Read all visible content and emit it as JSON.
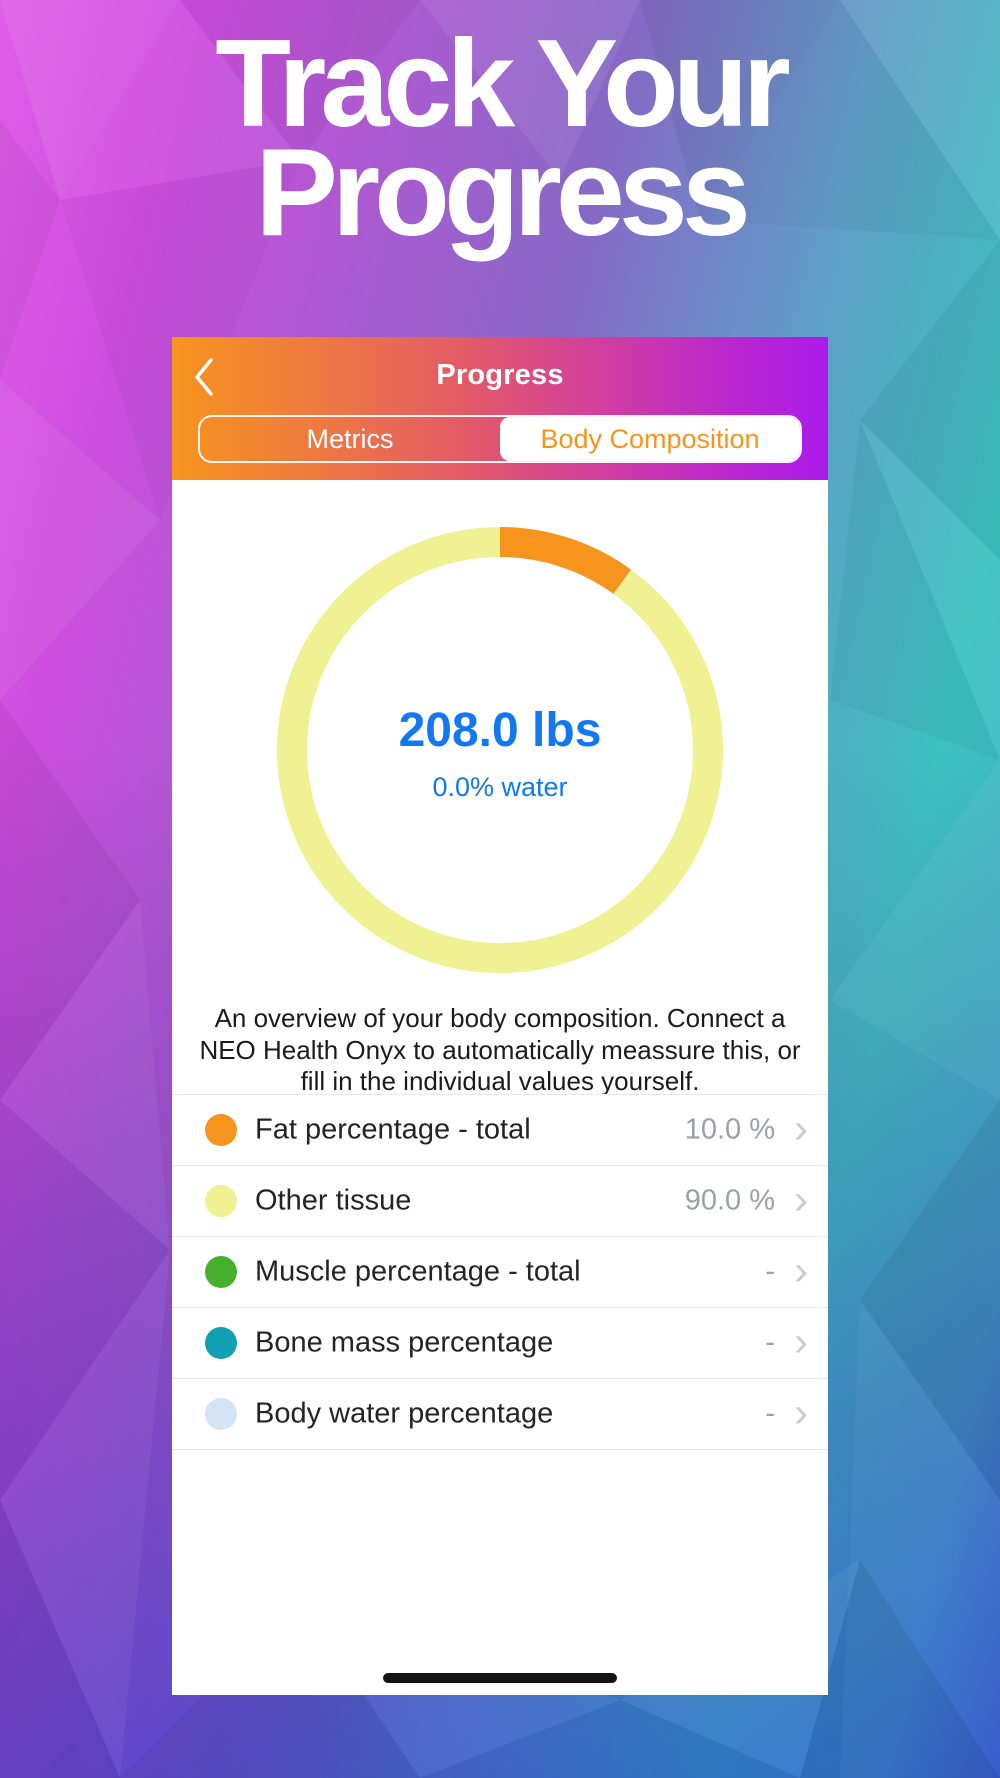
{
  "page": {
    "title_line1": "Track Your",
    "title_line2": "Progress"
  },
  "icons": {
    "back": "chevron-left",
    "row_chevron": "›"
  },
  "app": {
    "nav": {
      "title": "Progress"
    },
    "tabs": [
      {
        "label": "Metrics",
        "selected": false
      },
      {
        "label": "Body Composition",
        "selected": true
      }
    ],
    "chart_data": {
      "type": "donut",
      "title": "Body composition overview",
      "direction": "clockwise",
      "start_angle_deg": 0,
      "series": [
        {
          "name": "Fat percentage - total",
          "value": 10.0,
          "color": "#F7941E"
        },
        {
          "name": "Other tissue",
          "value": 90.0,
          "color": "#F0F193"
        }
      ],
      "center_primary": "208.0 lbs",
      "center_secondary": "0.0% water"
    },
    "description": "An overview of your body composition. Connect a NEO Health Onyx to automatically meassure this, or fill in the individual values yourself.",
    "rows": [
      {
        "label": "Fat percentage - total",
        "value": "10.0 %",
        "color": "#F7941E"
      },
      {
        "label": "Other tissue",
        "value": "90.0 %",
        "color": "#F0F193"
      },
      {
        "label": "Muscle percentage - total",
        "value": "-",
        "color": "#46AF2B"
      },
      {
        "label": "Bone mass percentage",
        "value": "-",
        "color": "#129FB2"
      },
      {
        "label": "Body water percentage",
        "value": "-",
        "color": "#D4E4F7"
      }
    ]
  },
  "colors": {
    "header_gradient_start": "#F7941E",
    "header_gradient_end": "#AC1BEB",
    "accent_blue": "#1278F2",
    "active_tab_text": "#F7941E",
    "donut_orange": "#F7941E",
    "donut_yellow": "#F0F193",
    "value_gray": "#9AA0A6",
    "bg_magenta": "#E05EE8",
    "bg_teal": "#3DC2BE",
    "bg_blue": "#3344C5"
  }
}
